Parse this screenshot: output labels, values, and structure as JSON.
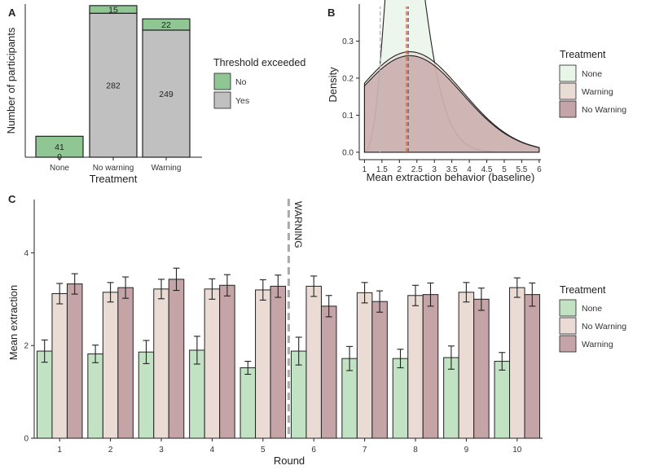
{
  "panel_labels": {
    "a": "A",
    "b": "B",
    "c": "C"
  },
  "colors": {
    "no": "#8fc694",
    "yes": "#c0c0c0",
    "none": "#c2e2c4",
    "no_warning": "#eadcd5",
    "warning": "#c4a4a6",
    "density_none": "#e9f5e9",
    "density_warning": "#e9dcd5",
    "density_no_warning": "#c4a4a6",
    "vline_none": "#bbbbbb",
    "vline_warning": "#cc7755",
    "vline_no_warning": "#7a5a5a",
    "divider": "#aaaaaa"
  },
  "chart_data": [
    {
      "id": "A",
      "type": "bar",
      "stacked": true,
      "categories": [
        "None",
        "No warning",
        "Warning"
      ],
      "series": [
        {
          "name": "No",
          "values": [
            41,
            15,
            22
          ],
          "labels": [
            "41",
            "15",
            "22"
          ]
        },
        {
          "name": "Yes",
          "values": [
            0,
            282,
            249
          ],
          "labels": [
            "0",
            "282",
            "249"
          ]
        }
      ],
      "xlabel": "Treatment",
      "ylabel": "Number of participants",
      "ylim": [
        0,
        300
      ],
      "legend": {
        "title": "Threshold exceeded",
        "entries": [
          "No",
          "Yes"
        ],
        "position": "right"
      }
    },
    {
      "id": "B",
      "type": "area",
      "series": [
        {
          "name": "None",
          "kind": "gamma",
          "k": 8,
          "theta": 0.19,
          "mean_line": 1.45
        },
        {
          "name": "Warning",
          "kind": "normal",
          "mu": 2.3,
          "sigma": 1.5,
          "scale": 1.02,
          "mean_line": 2.2
        },
        {
          "name": "No Warning",
          "kind": "normal",
          "mu": 2.3,
          "sigma": 1.5,
          "scale": 0.98,
          "mean_line": 2.25
        }
      ],
      "xlabel": "Mean extraction behavior (baseline)",
      "ylabel": "Density",
      "xlim": [
        0.85,
        6.05
      ],
      "ylim": [
        -0.02,
        0.4
      ],
      "xticks": [
        "1",
        "1.5",
        "2",
        "2.5",
        "3",
        "3.5",
        "4",
        "4.5",
        "5",
        "5.5",
        "6"
      ],
      "yticks": [
        "0.0",
        "0.1",
        "0.2",
        "0.3"
      ],
      "legend": {
        "title": "Treatment",
        "entries": [
          "None",
          "Warning",
          "No Warning"
        ],
        "position": "right"
      }
    },
    {
      "id": "C",
      "type": "bar",
      "categories": [
        "1",
        "2",
        "3",
        "4",
        "5",
        "6",
        "7",
        "8",
        "9",
        "10"
      ],
      "series": [
        {
          "name": "None",
          "values": [
            1.88,
            1.82,
            1.86,
            1.9,
            1.52,
            1.88,
            1.72,
            1.72,
            1.74,
            1.66
          ],
          "errors": [
            0.24,
            0.19,
            0.25,
            0.3,
            0.14,
            0.3,
            0.26,
            0.2,
            0.25,
            0.19
          ]
        },
        {
          "name": "No Warning",
          "values": [
            3.12,
            3.15,
            3.22,
            3.22,
            3.2,
            3.28,
            3.14,
            3.08,
            3.15,
            3.25
          ],
          "errors": [
            0.22,
            0.21,
            0.21,
            0.22,
            0.22,
            0.22,
            0.22,
            0.22,
            0.21,
            0.21
          ]
        },
        {
          "name": "Warning",
          "values": [
            3.33,
            3.25,
            3.43,
            3.3,
            3.28,
            2.85,
            2.95,
            3.1,
            3.0,
            3.1
          ],
          "errors": [
            0.22,
            0.23,
            0.24,
            0.23,
            0.24,
            0.23,
            0.23,
            0.25,
            0.24,
            0.25
          ]
        }
      ],
      "xlabel": "Round",
      "ylabel": "Mean extraction",
      "ylim": [
        0,
        5.15
      ],
      "yticks": [
        "0",
        "2",
        "4"
      ],
      "annotation": {
        "text": "WARNING",
        "between": [
          "5",
          "6"
        ]
      },
      "legend": {
        "title": "Treatment",
        "entries": [
          "None",
          "No Warning",
          "Warning"
        ],
        "position": "right"
      }
    }
  ]
}
